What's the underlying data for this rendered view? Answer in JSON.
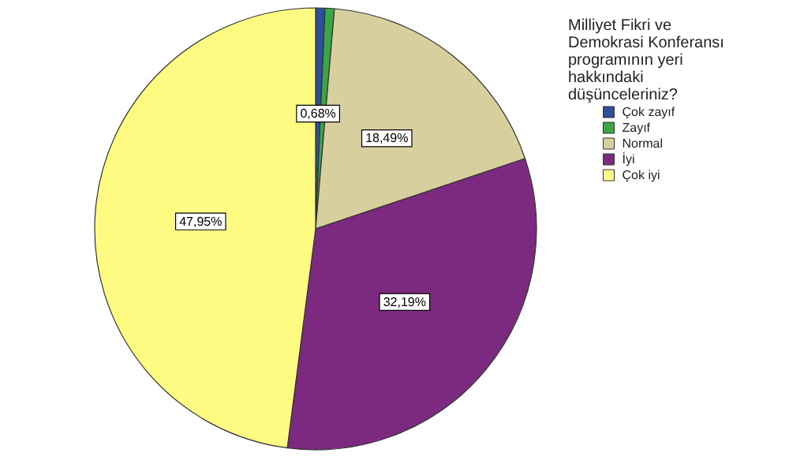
{
  "chart_data": {
    "type": "pie",
    "legend_title": "Milliyet Fikri ve Demokrasi Konferansı programının yeri hakkındaki düşünceleriniz?",
    "categories": [
      "Çok zayıf",
      "Zayıf",
      "Normal",
      "İyi",
      "Çok iyi"
    ],
    "values": [
      0.68,
      0.68,
      18.49,
      32.19,
      47.95
    ],
    "colors": [
      "#2d4f9e",
      "#3aa648",
      "#d7d09e",
      "#7b2a7f",
      "#fdfb82"
    ],
    "value_labels": [
      "0,68%",
      null,
      "18,49%",
      "32,19%",
      "47,95%"
    ],
    "legend": "right"
  }
}
